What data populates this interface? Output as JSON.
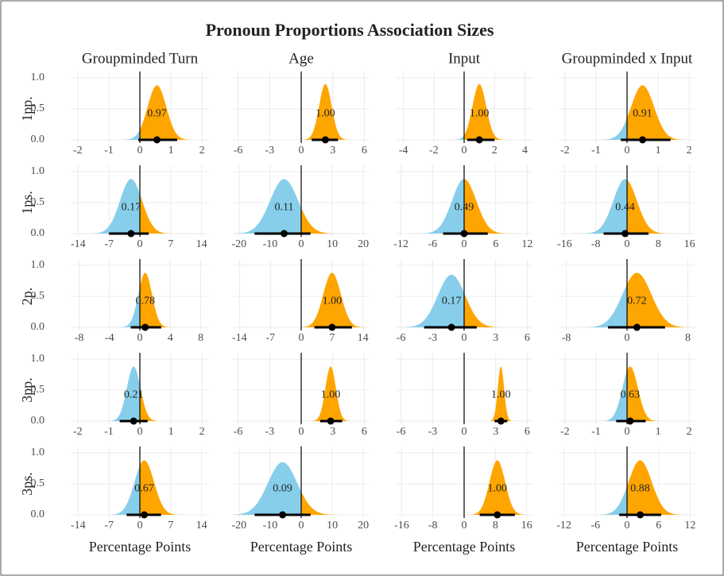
{
  "chart_data": {
    "type": "density-grid",
    "title": "Pronoun Proportions Association Sizes",
    "columns": [
      "Groupminded Turn",
      "Age",
      "Input",
      "Groupminded x Input"
    ],
    "rows": [
      "1pp.",
      "1ps.",
      "2p.",
      "3pp.",
      "3ps."
    ],
    "xlabel": "Percentage Points",
    "negative_color": "#87ceeb",
    "positive_color": "#ffa500",
    "ylim": [
      0,
      1
    ],
    "yticks": [
      {
        "value": 0,
        "label": "0.0"
      },
      {
        "value": 0.5,
        "label": "0.5"
      },
      {
        "value": 1,
        "label": "1.0"
      }
    ],
    "grid": true,
    "panels": [
      [
        {
          "xlim": [
            -2.2,
            2.2
          ],
          "xticks": [
            -2,
            -1,
            0,
            1,
            2
          ],
          "mean": 0.55,
          "sd": 0.3,
          "peak": 0.88,
          "interval": [
            -0.05,
            1.2
          ],
          "prob": 0.97
        },
        {
          "xlim": [
            -6.5,
            6.5
          ],
          "xticks": [
            -6,
            -3,
            0,
            3,
            6
          ],
          "mean": 2.3,
          "sd": 0.6,
          "peak": 0.9,
          "interval": [
            1.0,
            3.5
          ],
          "prob": 1,
          "prob_label": "1.00"
        },
        {
          "xlim": [
            -4.5,
            4.5
          ],
          "xticks": [
            -4,
            -2,
            0,
            2,
            4
          ],
          "mean": 1.0,
          "sd": 0.45,
          "peak": 0.9,
          "interval": [
            0.2,
            2.0
          ],
          "prob": 1,
          "prob_label": "1.00"
        },
        {
          "xlim": [
            -2.2,
            2.2
          ],
          "xticks": [
            -2,
            -1,
            0,
            1,
            2
          ],
          "mean": 0.5,
          "sd": 0.37,
          "peak": 0.88,
          "interval": [
            -0.2,
            1.4
          ],
          "prob": 0.91
        }
      ],
      [
        {
          "xlim": [
            -15.5,
            15.5
          ],
          "xticks": [
            -14,
            -7,
            0,
            7,
            14
          ],
          "mean": -2,
          "sd": 2.5,
          "peak": 0.88,
          "interval": [
            -7,
            2
          ],
          "prob": 0.17
        },
        {
          "xlim": [
            -22,
            22
          ],
          "xticks": [
            -20,
            -10,
            0,
            10,
            20
          ],
          "mean": -5.5,
          "sd": 4.5,
          "peak": 0.88,
          "interval": [
            -15,
            3
          ],
          "prob": 0.11
        },
        {
          "xlim": [
            -13,
            13
          ],
          "xticks": [
            -12,
            -6,
            0,
            6,
            12
          ],
          "mean": 0,
          "sd": 2.3,
          "peak": 0.88,
          "interval": [
            -4,
            4.5
          ],
          "prob": 0.49
        },
        {
          "xlim": [
            -17.5,
            17.5
          ],
          "xticks": [
            -16,
            -8,
            0,
            8,
            16
          ],
          "mean": -0.5,
          "sd": 3,
          "peak": 0.88,
          "interval": [
            -6,
            5.5
          ],
          "prob": 0.44
        }
      ],
      [
        {
          "xlim": [
            -9,
            9
          ],
          "xticks": [
            -8,
            -4,
            0,
            4,
            8
          ],
          "mean": 0.7,
          "sd": 0.9,
          "peak": 0.88,
          "interval": [
            -1.2,
            2.8
          ],
          "prob": 0.78
        },
        {
          "xlim": [
            -15.5,
            15.5
          ],
          "xticks": [
            -14,
            -7,
            0,
            7,
            14
          ],
          "mean": 7,
          "sd": 2,
          "peak": 0.88,
          "interval": [
            3,
            11.5
          ],
          "prob": 1,
          "prob_label": "1.00"
        },
        {
          "xlim": [
            -6.5,
            6.5
          ],
          "xticks": [
            -6,
            -3,
            0,
            3,
            6
          ],
          "mean": -1.2,
          "sd": 1.3,
          "peak": 0.85,
          "interval": [
            -3.8,
            1.2
          ],
          "prob": 0.17
        },
        {
          "xlim": [
            -9,
            9
          ],
          "xticks": [
            -8,
            0,
            8
          ],
          "mean": 1.3,
          "sd": 1.9,
          "peak": 0.88,
          "interval": [
            -2.5,
            5
          ],
          "prob": 0.72
        }
      ],
      [
        {
          "xlim": [
            -2.2,
            2.2
          ],
          "xticks": [
            -2,
            -1,
            0,
            1,
            2
          ],
          "mean": -0.2,
          "sd": 0.22,
          "peak": 0.88,
          "interval": [
            -0.65,
            0.25
          ],
          "prob": 0.21
        },
        {
          "xlim": [
            -6.5,
            6.5
          ],
          "xticks": [
            -6,
            -3,
            0,
            3,
            6
          ],
          "mean": 2.8,
          "sd": 0.5,
          "peak": 0.88,
          "interval": [
            1.8,
            3.9
          ],
          "prob": 1,
          "prob_label": "1.00"
        },
        {
          "xlim": [
            -6.5,
            6.5
          ],
          "xticks": [
            -6,
            -3,
            0,
            3,
            6
          ],
          "mean": 3.5,
          "sd": 0.3,
          "peak": 0.88,
          "interval": [
            2.9,
            4.1
          ],
          "prob": 1,
          "prob_label": "1.00"
        },
        {
          "xlim": [
            -2.2,
            2.2
          ],
          "xticks": [
            -2,
            -1,
            0,
            1,
            2
          ],
          "mean": 0.1,
          "sd": 0.25,
          "peak": 0.88,
          "interval": [
            -0.35,
            0.6
          ],
          "prob": 0.63
        }
      ],
      [
        {
          "xlim": [
            -15.5,
            15.5
          ],
          "xticks": [
            -14,
            -7,
            0,
            7,
            14
          ],
          "mean": 1,
          "sd": 2.2,
          "peak": 0.88,
          "interval": [
            -3,
            4.8
          ],
          "prob": 0.67
        },
        {
          "xlim": [
            -22,
            22
          ],
          "xticks": [
            -20,
            -10,
            0,
            10,
            20
          ],
          "mean": -6,
          "sd": 4.7,
          "peak": 0.85,
          "interval": [
            -15,
            3
          ],
          "prob": 0.09
        },
        {
          "xlim": [
            -17.5,
            17.5
          ],
          "xticks": [
            -16,
            -8,
            0,
            8,
            16
          ],
          "mean": 8.5,
          "sd": 2,
          "peak": 0.88,
          "interval": [
            4,
            13
          ],
          "prob": 1,
          "prob_label": "1.00"
        },
        {
          "xlim": [
            -13,
            13
          ],
          "xticks": [
            -12,
            -6,
            0,
            6,
            12
          ],
          "mean": 2.5,
          "sd": 2.2,
          "peak": 0.88,
          "interval": [
            -1.5,
            6.5
          ],
          "prob": 0.88
        }
      ]
    ]
  }
}
